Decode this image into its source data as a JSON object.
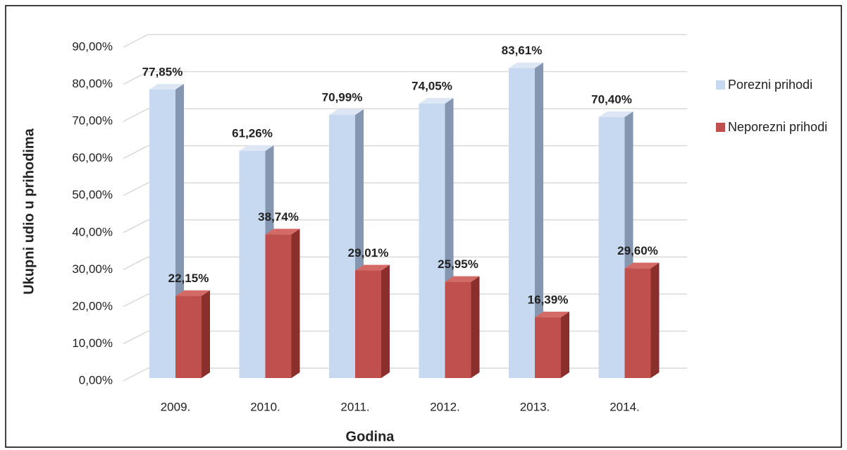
{
  "chart_data": {
    "type": "bar3d",
    "x_label": "Godina",
    "y_label": "Ukupni udio u prihodima",
    "categories": [
      "2009.",
      "2010.",
      "2011.",
      "2012.",
      "2013.",
      "2014."
    ],
    "series": [
      {
        "name": "Porezni prihodi",
        "color": "#c6d9f1",
        "values": [
          77.85,
          61.26,
          70.99,
          74.05,
          83.61,
          70.4
        ],
        "value_labels": [
          "77,85%",
          "61,26%",
          "70,99%",
          "74,05%",
          "83,61%",
          "70,40%"
        ]
      },
      {
        "name": "Neporezni prihodi",
        "color": "#c0504d",
        "values": [
          22.15,
          38.74,
          29.01,
          25.95,
          16.39,
          29.6
        ],
        "value_labels": [
          "22,15%",
          "38,74%",
          "29,01%",
          "25,95%",
          "16,39%",
          "29,60%"
        ]
      }
    ],
    "ylim": [
      0,
      90
    ],
    "yticks": [
      {
        "value": 0,
        "label": "0,00%"
      },
      {
        "value": 10,
        "label": "10,00%"
      },
      {
        "value": 20,
        "label": "20,00%"
      },
      {
        "value": 30,
        "label": "30,00%"
      },
      {
        "value": 40,
        "label": "40,00%"
      },
      {
        "value": 50,
        "label": "50,00%"
      },
      {
        "value": 60,
        "label": "60,00%"
      },
      {
        "value": 70,
        "label": "70,00%"
      },
      {
        "value": 80,
        "label": "80,00%"
      },
      {
        "value": 90,
        "label": "90,00%"
      }
    ],
    "grid": true,
    "legend": "right"
  }
}
